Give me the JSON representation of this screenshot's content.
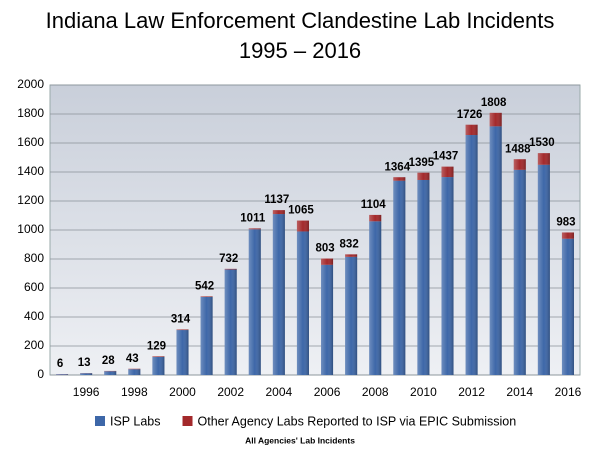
{
  "chart_data": {
    "type": "stacked-bar",
    "title": "Indiana Law Enforcement Clandestine Lab Incidents",
    "subtitle": "1995 – 2016",
    "footnote": "All Agencies' Lab Incidents",
    "categories": [
      null,
      "1996",
      null,
      "1998",
      null,
      "2000",
      null,
      "2002",
      null,
      "2004",
      null,
      "2006",
      null,
      "2008",
      null,
      "2010",
      null,
      "2012",
      null,
      "2014",
      null,
      "2016"
    ],
    "series": [
      {
        "name": "ISP Labs",
        "color": "#3d67a8",
        "values": [
          5,
          12,
          26,
          40,
          125,
          310,
          538,
          728,
          1005,
          1110,
          990,
          760,
          815,
          1060,
          1340,
          1345,
          1365,
          1655,
          1715,
          1415,
          1450,
          940
        ]
      },
      {
        "name": "Other Agency Labs Reported to ISP via EPIC Submission",
        "color": "#a3292b",
        "values": [
          1,
          1,
          2,
          3,
          4,
          4,
          4,
          4,
          6,
          27,
          75,
          43,
          17,
          44,
          24,
          50,
          72,
          71,
          93,
          73,
          80,
          43
        ]
      }
    ],
    "totals": [
      6,
      13,
      28,
      43,
      129,
      314,
      542,
      732,
      1011,
      1137,
      1065,
      803,
      832,
      1104,
      1364,
      1395,
      1437,
      1726,
      1808,
      1488,
      1530,
      983
    ],
    "ylim": [
      0,
      2000
    ],
    "yticks": [
      0,
      200,
      400,
      600,
      800,
      1000,
      1200,
      1400,
      1600,
      1800,
      2000
    ],
    "grid": true,
    "legend": "bottom"
  }
}
